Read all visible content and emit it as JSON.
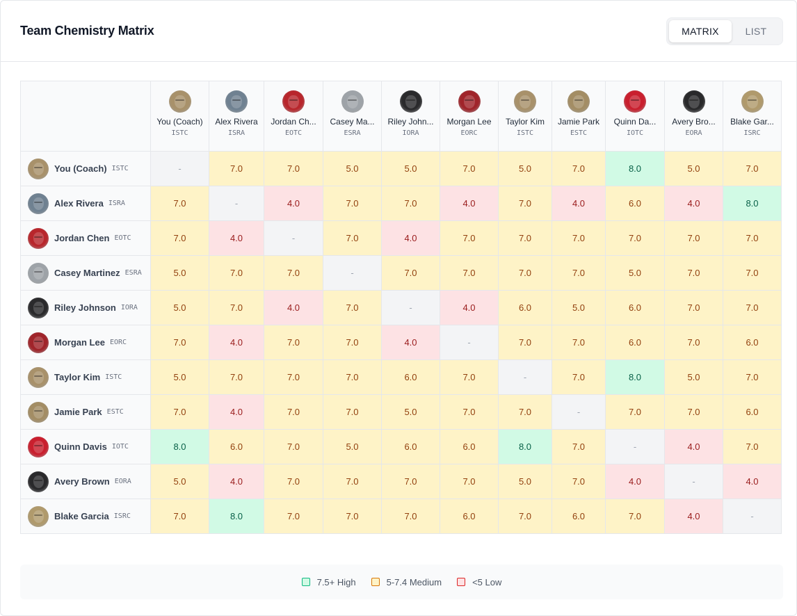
{
  "header": {
    "title": "Team Chemistry Matrix",
    "view_toggle": {
      "matrix_label": "MATRIX",
      "list_label": "LIST",
      "active": "MATRIX"
    }
  },
  "colors": {
    "high_bg": "#d1fae5",
    "high_text": "#065f46",
    "medium_bg": "#fef3c7",
    "medium_text": "#92400e",
    "low_bg": "#fde2e4",
    "low_text": "#991b1b",
    "self_bg": "#f3f4f6"
  },
  "members": [
    {
      "id": "coach",
      "name": "You (Coach)",
      "short": "You (Coach)",
      "type": "ISTC",
      "avatar_icon": "bull-avatar-icon",
      "avatar_color": "#a8916a"
    },
    {
      "id": "alex",
      "name": "Alex Rivera",
      "short": "Alex Rivera",
      "type": "ISRA",
      "avatar_icon": "owl-avatar-icon",
      "avatar_color": "#6f8191"
    },
    {
      "id": "jordan",
      "name": "Jordan Chen",
      "short": "Jordan Ch...",
      "type": "EOTC",
      "avatar_icon": "gorilla-avatar-icon",
      "avatar_color": "#b8262c"
    },
    {
      "id": "casey",
      "name": "Casey Martinez",
      "short": "Casey Ma...",
      "type": "ESRA",
      "avatar_icon": "ram-avatar-icon",
      "avatar_color": "#9ea3a8"
    },
    {
      "id": "riley",
      "name": "Riley Johnson",
      "short": "Riley John...",
      "type": "IORA",
      "avatar_icon": "horse-avatar-icon",
      "avatar_color": "#2a2a2c"
    },
    {
      "id": "morgan",
      "name": "Morgan Lee",
      "short": "Morgan Lee",
      "type": "EORC",
      "avatar_icon": "bull-avatar-icon",
      "avatar_color": "#a0242a"
    },
    {
      "id": "taylor",
      "name": "Taylor Kim",
      "short": "Taylor Kim",
      "type": "ISTC",
      "avatar_icon": "bull-avatar-icon",
      "avatar_color": "#a8916a"
    },
    {
      "id": "jamie",
      "name": "Jamie Park",
      "short": "Jamie Park",
      "type": "ESTC",
      "avatar_icon": "elephant-avatar-icon",
      "avatar_color": "#a38d64"
    },
    {
      "id": "quinn",
      "name": "Quinn Davis",
      "short": "Quinn Da...",
      "type": "IOTC",
      "avatar_icon": "lion-avatar-icon",
      "avatar_color": "#c91f2e"
    },
    {
      "id": "avery",
      "name": "Avery Brown",
      "short": "Avery Bro...",
      "type": "EORA",
      "avatar_icon": "wolf-avatar-icon",
      "avatar_color": "#29292b"
    },
    {
      "id": "blake",
      "name": "Blake Garcia",
      "short": "Blake Gar...",
      "type": "ISRC",
      "avatar_icon": "goat-avatar-icon",
      "avatar_color": "#b09a6c"
    }
  ],
  "matrix": [
    [
      "-",
      "7.0",
      "7.0",
      "5.0",
      "5.0",
      "7.0",
      "5.0",
      "7.0",
      "8.0",
      "5.0",
      "7.0"
    ],
    [
      "7.0",
      "-",
      "4.0",
      "7.0",
      "7.0",
      "4.0",
      "7.0",
      "4.0",
      "6.0",
      "4.0",
      "8.0"
    ],
    [
      "7.0",
      "4.0",
      "-",
      "7.0",
      "4.0",
      "7.0",
      "7.0",
      "7.0",
      "7.0",
      "7.0",
      "7.0"
    ],
    [
      "5.0",
      "7.0",
      "7.0",
      "-",
      "7.0",
      "7.0",
      "7.0",
      "7.0",
      "5.0",
      "7.0",
      "7.0"
    ],
    [
      "5.0",
      "7.0",
      "4.0",
      "7.0",
      "-",
      "4.0",
      "6.0",
      "5.0",
      "6.0",
      "7.0",
      "7.0"
    ],
    [
      "7.0",
      "4.0",
      "7.0",
      "7.0",
      "4.0",
      "-",
      "7.0",
      "7.0",
      "6.0",
      "7.0",
      "6.0"
    ],
    [
      "5.0",
      "7.0",
      "7.0",
      "7.0",
      "6.0",
      "7.0",
      "-",
      "7.0",
      "8.0",
      "5.0",
      "7.0"
    ],
    [
      "7.0",
      "4.0",
      "7.0",
      "7.0",
      "5.0",
      "7.0",
      "7.0",
      "-",
      "7.0",
      "7.0",
      "6.0"
    ],
    [
      "8.0",
      "6.0",
      "7.0",
      "5.0",
      "6.0",
      "6.0",
      "8.0",
      "7.0",
      "-",
      "4.0",
      "7.0"
    ],
    [
      "5.0",
      "4.0",
      "7.0",
      "7.0",
      "7.0",
      "7.0",
      "5.0",
      "7.0",
      "4.0",
      "-",
      "4.0"
    ],
    [
      "7.0",
      "8.0",
      "7.0",
      "7.0",
      "7.0",
      "6.0",
      "7.0",
      "6.0",
      "7.0",
      "4.0",
      "-"
    ]
  ],
  "legend": {
    "high_label": "7.5+ High",
    "medium_label": "5-7.4 Medium",
    "low_label": "<5 Low"
  }
}
